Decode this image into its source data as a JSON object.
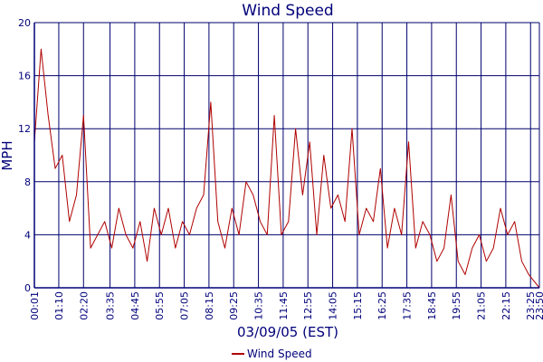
{
  "chart_data": {
    "type": "line",
    "title": "Wind Speed",
    "xlabel": "03/09/05 (EST)",
    "ylabel": "MPH",
    "ylim": [
      0,
      20
    ],
    "yticks": [
      0,
      4,
      8,
      12,
      16,
      20
    ],
    "xlim": [
      "00:01",
      "23:50"
    ],
    "xticks": [
      "00:01",
      "01:10",
      "02:20",
      "03:35",
      "04:45",
      "05:55",
      "07:05",
      "08:15",
      "09:25",
      "10:35",
      "11:45",
      "12:55",
      "14:05",
      "15:15",
      "16:25",
      "17:35",
      "18:45",
      "19:55",
      "21:05",
      "22:15",
      "23:25",
      "23:50"
    ],
    "grid": true,
    "legend_position": "bottom",
    "colors": {
      "series": "#b00000",
      "grid": "#00006e",
      "axis": "#00007a",
      "text": "#00007a"
    },
    "series": [
      {
        "name": "Wind Speed",
        "x": [
          "00:01",
          "00:20",
          "00:40",
          "01:00",
          "01:20",
          "01:40",
          "02:00",
          "02:20",
          "02:40",
          "03:00",
          "03:20",
          "03:40",
          "04:00",
          "04:20",
          "04:40",
          "05:00",
          "05:20",
          "05:40",
          "06:00",
          "06:20",
          "06:40",
          "07:00",
          "07:20",
          "07:40",
          "08:00",
          "08:20",
          "08:40",
          "09:00",
          "09:20",
          "09:40",
          "10:00",
          "10:20",
          "10:40",
          "11:00",
          "11:20",
          "11:40",
          "12:00",
          "12:20",
          "12:40",
          "13:00",
          "13:20",
          "13:40",
          "14:00",
          "14:20",
          "14:40",
          "15:00",
          "15:20",
          "15:40",
          "16:00",
          "16:20",
          "16:40",
          "17:00",
          "17:20",
          "17:40",
          "18:00",
          "18:20",
          "18:40",
          "19:00",
          "19:20",
          "19:40",
          "20:00",
          "20:20",
          "20:40",
          "21:00",
          "21:20",
          "21:40",
          "22:00",
          "22:20",
          "22:40",
          "23:00",
          "23:20",
          "23:50"
        ],
        "values": [
          11,
          18,
          13,
          9,
          10,
          5,
          7,
          13,
          3,
          4,
          5,
          3,
          6,
          4,
          3,
          5,
          2,
          6,
          4,
          6,
          3,
          5,
          4,
          6,
          7,
          14,
          5,
          3,
          6,
          4,
          8,
          7,
          5,
          4,
          13,
          4,
          5,
          12,
          7,
          11,
          4,
          10,
          6,
          7,
          5,
          12,
          4,
          6,
          5,
          9,
          3,
          6,
          4,
          11,
          3,
          5,
          4,
          2,
          3,
          7,
          2,
          1,
          3,
          4,
          2,
          3,
          6,
          4,
          5,
          2,
          1,
          0
        ]
      }
    ]
  }
}
